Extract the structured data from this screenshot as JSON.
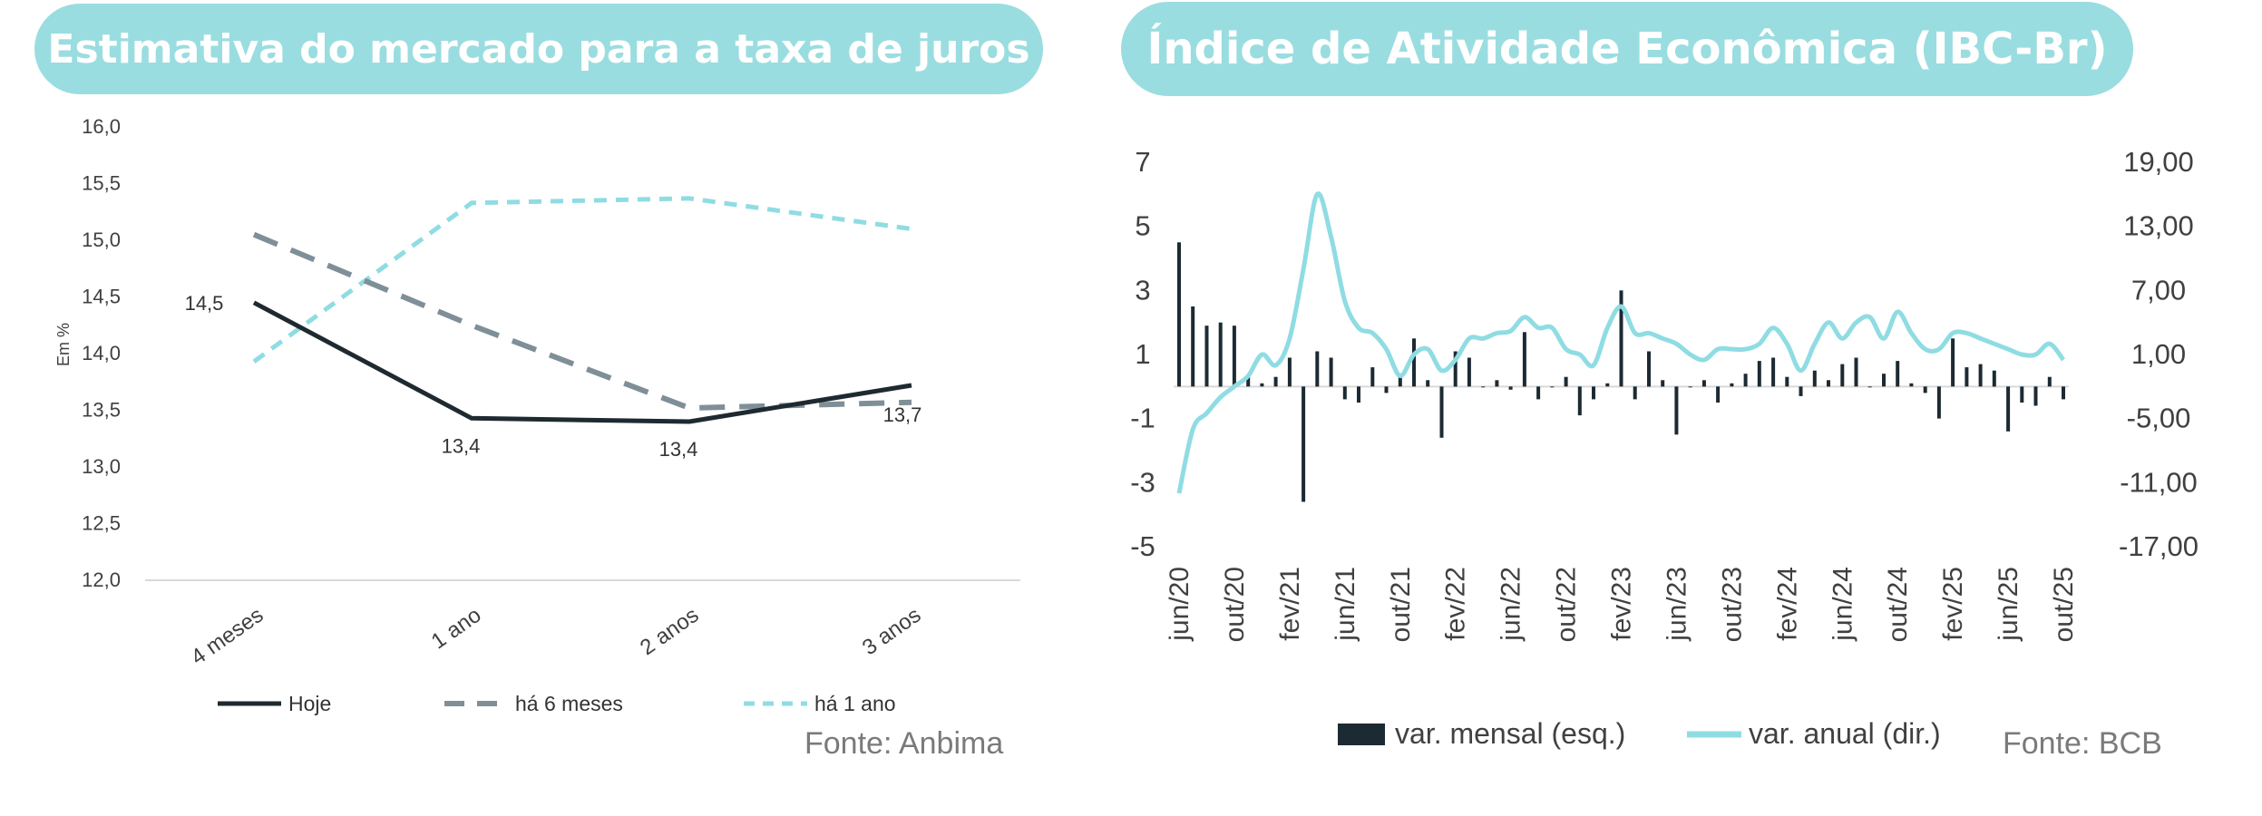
{
  "left": {
    "title": "Estimativa do mercado para a taxa de juros",
    "source": "Fonte: Anbima"
  },
  "right": {
    "title": "Índice de Atividade Econômica (IBC-Br)",
    "source": "Fonte: BCB"
  },
  "chart_data": [
    {
      "type": "line",
      "title": "Estimativa do mercado para a taxa de juros",
      "ylabel": "Em %",
      "xlabel": "",
      "categories": [
        "4 meses",
        "1 ano",
        "2 anos",
        "3 anos"
      ],
      "ylim": [
        12.0,
        16.0
      ],
      "yticks": [
        "12,0",
        "12,5",
        "13,0",
        "13,5",
        "14,0",
        "14,5",
        "15,0",
        "15,5",
        "16,0"
      ],
      "grid": false,
      "legend": "bottom",
      "series": [
        {
          "name": "Hoje",
          "values": [
            14.45,
            13.43,
            13.4,
            13.72
          ],
          "color": "#1e2a30",
          "style": "solid",
          "data_labels": [
            "14,5",
            "13,4",
            "13,4",
            "13,7"
          ]
        },
        {
          "name": "há 6 meses",
          "values": [
            15.05,
            14.25,
            13.52,
            13.57
          ],
          "color": "#7f8f98",
          "style": "dashed"
        },
        {
          "name": "há 1 ano",
          "values": [
            13.93,
            15.33,
            15.37,
            15.1
          ],
          "color": "#8fdce3",
          "style": "dotted"
        }
      ]
    },
    {
      "type": "bar+line",
      "title": "Índice de Atividade Econômica (IBC-Br)",
      "xlabel": "",
      "ylabel": "",
      "legend": "bottom",
      "x_tick_labels": [
        "jun/20",
        "out/20",
        "fev/21",
        "jun/21",
        "out/21",
        "fev/22",
        "jun/22",
        "out/22",
        "fev/23",
        "jun/23",
        "out/23",
        "fev/24",
        "jun/24",
        "out/24",
        "fev/25",
        "jun/25",
        "out/25"
      ],
      "y_left": {
        "ylim": [
          -5,
          7
        ],
        "ticks": [
          "-5",
          "-3",
          "-1",
          "1",
          "3",
          "5",
          "7"
        ]
      },
      "y_right": {
        "ylim": [
          -17,
          19
        ],
        "ticks": [
          "-17,00",
          "-11,00",
          "-5,00",
          "1,00",
          "7,00",
          "13,00",
          "19,00"
        ]
      },
      "x": [
        "jun/20",
        "jul/20",
        "ago/20",
        "set/20",
        "out/20",
        "nov/20",
        "dez/20",
        "jan/21",
        "fev/21",
        "mar/21",
        "abr/21",
        "mai/21",
        "jun/21",
        "jul/21",
        "ago/21",
        "set/21",
        "out/21",
        "nov/21",
        "dez/21",
        "jan/22",
        "fev/22",
        "mar/22",
        "abr/22",
        "mai/22",
        "jun/22",
        "jul/22",
        "ago/22",
        "set/22",
        "out/22",
        "nov/22",
        "dez/22",
        "jan/23",
        "fev/23",
        "mar/23",
        "abr/23",
        "mai/23",
        "jun/23",
        "jul/23",
        "ago/23",
        "set/23",
        "out/23",
        "nov/23",
        "dez/23",
        "jan/24",
        "fev/24",
        "mar/24",
        "abr/24",
        "mai/24",
        "jun/24",
        "jul/24",
        "ago/24",
        "set/24",
        "out/24",
        "nov/24",
        "dez/24",
        "jan/25",
        "fev/25",
        "mar/25",
        "abr/25",
        "mai/25",
        "jun/25",
        "jul/25",
        "ago/25",
        "set/25",
        "out/25"
      ],
      "series": [
        {
          "name": "var. mensal (esq.)",
          "type": "bar",
          "axis": "left",
          "color": "#1c2a33",
          "values": [
            4.5,
            2.5,
            1.9,
            2.0,
            1.9,
            0.3,
            0.1,
            0.3,
            0.9,
            -3.6,
            1.1,
            0.9,
            -0.4,
            -0.5,
            0.6,
            -0.2,
            0.4,
            1.5,
            0.2,
            -1.6,
            1.1,
            0.9,
            0.0,
            0.2,
            -0.1,
            1.7,
            -0.4,
            0.0,
            0.3,
            -0.9,
            -0.4,
            0.1,
            3.0,
            -0.4,
            1.1,
            0.2,
            -1.5,
            0.0,
            0.2,
            -0.5,
            0.1,
            0.4,
            0.8,
            0.9,
            0.3,
            -0.3,
            0.5,
            0.2,
            0.7,
            0.9,
            0.0,
            0.4,
            0.8,
            0.1,
            -0.2,
            -1.0,
            1.5,
            0.6,
            0.7,
            0.5,
            -1.4,
            -0.5,
            -0.6,
            0.3,
            -0.4
          ]
        },
        {
          "name": "var. anual (dir.)",
          "type": "line",
          "axis": "right",
          "color": "#8fdce3",
          "values": [
            -12.0,
            -6.0,
            -4.5,
            -3.0,
            -2.0,
            -1.0,
            1.0,
            0.0,
            2.5,
            9.0,
            16.0,
            12.0,
            6.0,
            3.5,
            3.0,
            1.5,
            -1.0,
            1.0,
            1.5,
            -0.5,
            0.5,
            2.5,
            2.5,
            3.0,
            3.2,
            4.5,
            3.5,
            3.5,
            1.5,
            1.0,
            0.0,
            3.5,
            5.5,
            3.0,
            3.0,
            2.5,
            2.0,
            1.0,
            0.5,
            1.5,
            1.5,
            1.5,
            2.0,
            3.5,
            2.0,
            -0.5,
            2.0,
            4.0,
            2.5,
            4.0,
            4.5,
            2.5,
            5.0,
            3.0,
            1.5,
            1.5,
            3.0,
            3.0,
            2.5,
            2.0,
            1.5,
            1.0,
            1.0,
            2.0,
            0.5
          ]
        }
      ]
    }
  ]
}
